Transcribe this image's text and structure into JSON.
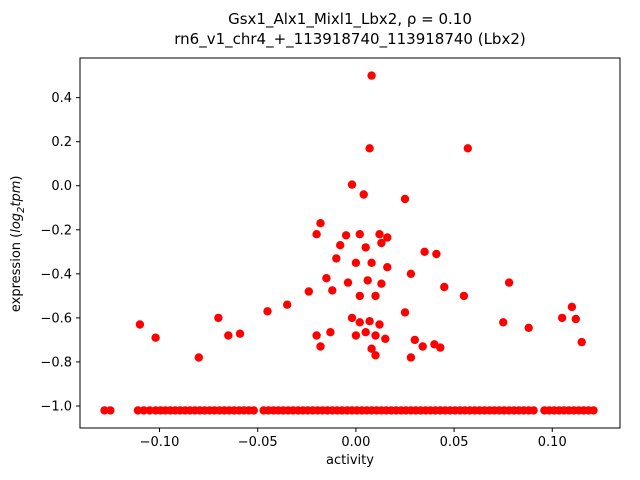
{
  "figure": {
    "title_line1": "Gsx1_Alx1_Mixl1_Lbx2, ρ = 0.10",
    "title_line2": "rn6_v1_chr4_+_113918740_113918740 (Lbx2)",
    "xlabel": "activity",
    "ylabel_parts": {
      "prefix": "expression (",
      "word1": "log",
      "sub": "2",
      "word2": "tpm",
      "suffix": ")"
    }
  },
  "chart_data": {
    "type": "scatter",
    "title": "Gsx1_Alx1_Mixl1_Lbx2, ρ = 0.10",
    "subtitle": "rn6_v1_chr4_+_113918740_113918740 (Lbx2)",
    "xlabel": "activity",
    "ylabel": "expression (log₂tpm)",
    "xlim": [
      -0.1405,
      0.1345
    ],
    "ylim": [
      -1.1,
      0.58
    ],
    "xticks": [
      -0.1,
      -0.05,
      0.0,
      0.05,
      0.1
    ],
    "xtick_labels": [
      "−0.10",
      "−0.05",
      "0.00",
      "0.05",
      "0.10"
    ],
    "yticks": [
      0.4,
      0.2,
      0.0,
      -0.2,
      -0.4,
      -0.6,
      -0.8,
      -1.0
    ],
    "ytick_labels": [
      "0.4",
      "0.2",
      "0.0",
      "−0.2",
      "−0.4",
      "−0.6",
      "−0.8",
      "−1.0"
    ],
    "grid": false,
    "legend": null,
    "marker": {
      "color": "#ff0000",
      "radius": 4.2
    },
    "points": [
      [
        0.008,
        0.5
      ],
      [
        0.007,
        0.17
      ],
      [
        0.057,
        0.17
      ],
      [
        -0.002,
        0.005
      ],
      [
        0.004,
        -0.04
      ],
      [
        0.025,
        -0.06
      ],
      [
        -0.018,
        -0.17
      ],
      [
        -0.02,
        -0.22
      ],
      [
        -0.005,
        -0.225
      ],
      [
        0.002,
        -0.22
      ],
      [
        0.012,
        -0.22
      ],
      [
        0.016,
        -0.235
      ],
      [
        -0.008,
        -0.27
      ],
      [
        0.005,
        -0.28
      ],
      [
        0.013,
        -0.26
      ],
      [
        0.035,
        -0.3
      ],
      [
        0.041,
        -0.31
      ],
      [
        -0.01,
        -0.33
      ],
      [
        0.0,
        -0.35
      ],
      [
        0.008,
        -0.35
      ],
      [
        0.016,
        -0.37
      ],
      [
        0.028,
        -0.4
      ],
      [
        -0.015,
        -0.42
      ],
      [
        -0.004,
        -0.44
      ],
      [
        0.006,
        -0.43
      ],
      [
        0.013,
        -0.445
      ],
      [
        0.045,
        -0.46
      ],
      [
        -0.024,
        -0.48
      ],
      [
        -0.012,
        -0.475
      ],
      [
        0.002,
        -0.5
      ],
      [
        0.01,
        -0.5
      ],
      [
        0.055,
        -0.5
      ],
      [
        0.078,
        -0.44
      ],
      [
        -0.035,
        -0.54
      ],
      [
        -0.045,
        -0.57
      ],
      [
        0.025,
        -0.575
      ],
      [
        -0.11,
        -0.63
      ],
      [
        -0.102,
        -0.69
      ],
      [
        -0.08,
        -0.78
      ],
      [
        -0.07,
        -0.6
      ],
      [
        -0.065,
        -0.68
      ],
      [
        -0.059,
        -0.672
      ],
      [
        -0.02,
        -0.68
      ],
      [
        -0.013,
        -0.665
      ],
      [
        -0.002,
        -0.6
      ],
      [
        0.002,
        -0.62
      ],
      [
        0.007,
        -0.615
      ],
      [
        0.012,
        -0.63
      ],
      [
        0.0,
        -0.68
      ],
      [
        0.005,
        -0.665
      ],
      [
        0.01,
        -0.68
      ],
      [
        0.015,
        -0.695
      ],
      [
        0.03,
        -0.7
      ],
      [
        0.034,
        -0.73
      ],
      [
        0.04,
        -0.72
      ],
      [
        0.043,
        -0.735
      ],
      [
        0.075,
        -0.62
      ],
      [
        0.088,
        -0.645
      ],
      [
        0.105,
        -0.6
      ],
      [
        0.11,
        -0.55
      ],
      [
        0.112,
        -0.605
      ],
      [
        0.115,
        -0.71
      ],
      [
        -0.018,
        -0.73
      ],
      [
        0.008,
        -0.74
      ],
      [
        0.01,
        -0.77
      ],
      [
        0.028,
        -0.78
      ]
    ],
    "baseline": {
      "y": -1.02,
      "x": [
        -0.128,
        -0.125,
        -0.111,
        -0.108,
        -0.105,
        -0.102,
        -0.0995,
        -0.097,
        -0.0945,
        -0.092,
        -0.0895,
        -0.087,
        -0.0845,
        -0.082,
        -0.0795,
        -0.077,
        -0.0745,
        -0.072,
        -0.0695,
        -0.067,
        -0.0645,
        -0.062,
        -0.0595,
        -0.057,
        -0.0545,
        -0.052,
        -0.047,
        -0.0445,
        -0.042,
        -0.0395,
        -0.037,
        -0.0345,
        -0.032,
        -0.0295,
        -0.027,
        -0.0245,
        -0.022,
        -0.0195,
        -0.017,
        -0.0145,
        -0.012,
        -0.0095,
        -0.007,
        -0.0045,
        -0.002,
        0.0005,
        0.003,
        0.0055,
        0.008,
        0.0105,
        0.013,
        0.0155,
        0.018,
        0.0205,
        0.023,
        0.0255,
        0.028,
        0.0305,
        0.033,
        0.0355,
        0.038,
        0.0405,
        0.043,
        0.0455,
        0.048,
        0.0505,
        0.053,
        0.0555,
        0.058,
        0.0605,
        0.063,
        0.0655,
        0.068,
        0.0705,
        0.073,
        0.0755,
        0.078,
        0.0805,
        0.083,
        0.0855,
        0.088,
        0.0905,
        0.096,
        0.0985,
        0.101,
        0.1035,
        0.106,
        0.1085,
        0.111,
        0.1135,
        0.116,
        0.1185,
        0.121
      ]
    }
  }
}
